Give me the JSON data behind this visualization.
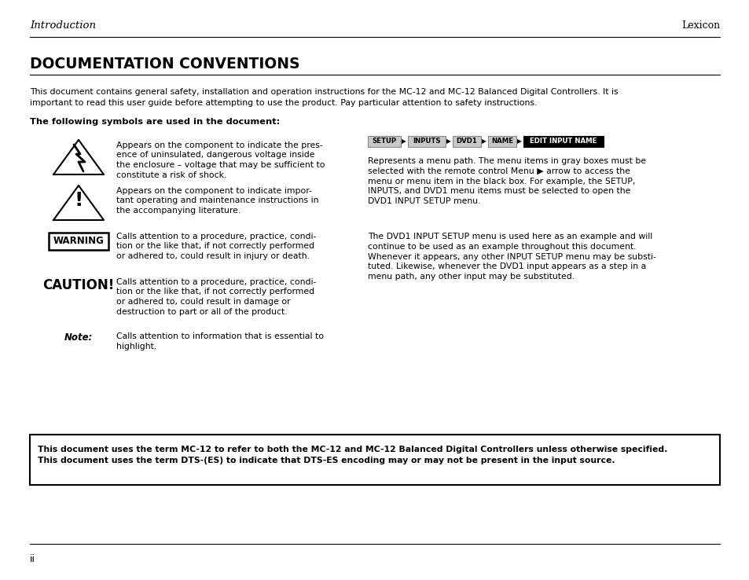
{
  "page_bg": "#ffffff",
  "header_italic_left": "Introduction",
  "header_right": "Lexicon",
  "title": "DOCUMENTATION CONVENTIONS",
  "intro_text": "This document contains general safety, installation and operation instructions for the MC-12 and MC-12 Balanced Digital Controllers. It is\nimportant to read this user guide before attempting to use the product. Pay particular attention to safety instructions.",
  "bold_heading": "The following symbols are used in the document:",
  "sym1_text": "Appears on the component to indicate the pres-\nence of uninsulated, dangerous voltage inside\nthe enclosure – voltage that may be sufficient to\nconstitute a risk of shock.",
  "sym2_text": "Appears on the component to indicate impor-\ntant operating and maintenance instructions in\nthe accompanying literature.",
  "sym3_label": "WARNING",
  "sym3_text": "Calls attention to a procedure, practice, condi-\ntion or the like that, if not correctly performed\nor adhered to, could result in injury or death.",
  "sym4_label": "CAUTION!",
  "sym4_text": "Calls attention to a procedure, practice, condi-\ntion or the like that, if not correctly performed\nor adhered to, could result in damage or\ndestruction to part or all of the product.",
  "sym5_label": "Note:",
  "sym5_text": "Calls attention to information that is essential to\nhighlight.",
  "menu_path_items": [
    "SETUP",
    "INPUTS",
    "DVD1",
    "NAME",
    "EDIT INPUT NAME"
  ],
  "menu_path_desc": "Represents a menu path. The menu items in gray boxes must be\nselected with the remote control Menu ▶ arrow to access the\nmenu or menu item in the black box. For example, the SETUP,\nINPUTS, and DVD1 menu items must be selected to open the\nDVD1 INPUT SETUP menu.",
  "dvd1_text": "The DVD1 INPUT SETUP menu is used here as an example and will\ncontinue to be used as an example throughout this document.\nWhenever it appears, any other INPUT SETUP menu may be substi-\ntuted. Likewise, whenever the DVD1 input appears as a step in a\nmenu path, any other input may be substituted.",
  "notice_line1": "This document uses the term MC-12 to refer to both the MC-12 and MC-12 Balanced Digital Controllers unless otherwise specified.",
  "notice_line2": "This document uses the term DTS-(ES) to indicate that DTS-ES encoding may or may not be present in the input source.",
  "footer_text": "ii"
}
